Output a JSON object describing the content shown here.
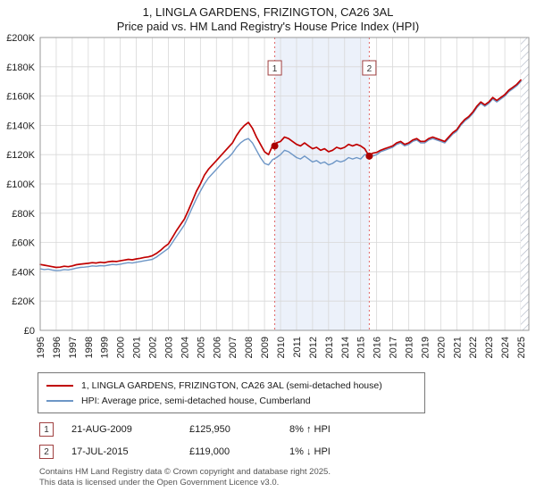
{
  "title": "1, LINGLA GARDENS, FRIZINGTON, CA26 3AL",
  "subtitle": "Price paid vs. HM Land Registry's House Price Index (HPI)",
  "chart_data": {
    "type": "line",
    "units": "GBP thousands",
    "xlim": [
      1995,
      2025.5
    ],
    "ylim": [
      0,
      200
    ],
    "grid": true,
    "legend_position": "bottom",
    "x_ticks": [
      1995,
      1996,
      1997,
      1998,
      1999,
      2000,
      2001,
      2002,
      2003,
      2004,
      2005,
      2006,
      2007,
      2008,
      2009,
      2010,
      2011,
      2012,
      2013,
      2014,
      2015,
      2016,
      2017,
      2018,
      2019,
      2020,
      2021,
      2022,
      2023,
      2024,
      2025
    ],
    "y_ticks": [
      {
        "value": 0,
        "label": "£0"
      },
      {
        "value": 20,
        "label": "£20K"
      },
      {
        "value": 40,
        "label": "£40K"
      },
      {
        "value": 60,
        "label": "£60K"
      },
      {
        "value": 80,
        "label": "£80K"
      },
      {
        "value": 100,
        "label": "£100K"
      },
      {
        "value": 120,
        "label": "£120K"
      },
      {
        "value": 140,
        "label": "£140K"
      },
      {
        "value": 160,
        "label": "£160K"
      },
      {
        "value": 180,
        "label": "£180K"
      },
      {
        "value": 200,
        "label": "£200K"
      }
    ],
    "x_start": 1995,
    "x_step": 0.25,
    "hatch_from": 2025.0,
    "band_color": "#dce6f5",
    "sale_line_color": "#e06666",
    "marker_color": "#aa0000",
    "series": [
      {
        "name": "1, LINGLA GARDENS, FRIZINGTON, CA26 3AL (semi-detached house)",
        "color": "#c00000",
        "stroke_width": 1.7,
        "values": [
          45.0,
          44.5,
          44.0,
          43.5,
          43.0,
          43.2,
          43.8,
          43.5,
          44.0,
          44.8,
          45.2,
          45.5,
          45.8,
          46.2,
          46.0,
          46.5,
          46.2,
          46.8,
          47.2,
          47.0,
          47.5,
          48.0,
          48.5,
          48.2,
          48.8,
          49.2,
          49.8,
          50.2,
          51.0,
          52.5,
          54.5,
          57.0,
          59.0,
          63.5,
          68.0,
          72.0,
          76.0,
          82.0,
          88.5,
          95.0,
          100.0,
          106.0,
          110.0,
          113.0,
          116.0,
          119.0,
          122.0,
          125.0,
          128.0,
          133.0,
          137.0,
          140.0,
          142.0,
          138.0,
          132.0,
          127.0,
          122.0,
          120.0,
          126.0,
          128.0,
          129.0,
          132.0,
          131.0,
          129.0,
          127.0,
          126.0,
          128.0,
          126.0,
          124.0,
          125.0,
          123.0,
          124.0,
          122.0,
          123.0,
          125.0,
          124.0,
          125.0,
          127.0,
          126.0,
          127.0,
          126.0,
          124.0,
          119.5,
          121.0,
          121.5,
          123.0,
          124.0,
          125.0,
          126.0,
          128.0,
          129.0,
          127.0,
          128.0,
          130.0,
          131.0,
          129.0,
          129.0,
          131.0,
          132.0,
          131.0,
          130.0,
          129.0,
          132.0,
          135.0,
          137.0,
          141.0,
          144.0,
          146.0,
          149.0,
          153.0,
          156.0,
          154.0,
          156.0,
          159.0,
          157.0,
          159.0,
          161.0,
          164.0,
          166.0,
          168.0,
          171.0
        ]
      },
      {
        "name": "HPI: Average price, semi-detached house, Cumberland",
        "color": "#6d96c6",
        "stroke_width": 1.4,
        "values": [
          42.0,
          41.5,
          41.8,
          41.2,
          40.8,
          41.0,
          41.5,
          41.3,
          41.8,
          42.5,
          43.0,
          43.2,
          43.5,
          44.0,
          43.8,
          44.2,
          44.0,
          44.5,
          45.0,
          44.8,
          45.2,
          45.8,
          46.2,
          46.0,
          46.5,
          47.0,
          47.5,
          48.0,
          48.5,
          50.0,
          52.0,
          54.0,
          56.0,
          60.0,
          64.0,
          68.0,
          72.0,
          78.0,
          84.0,
          90.0,
          95.0,
          100.0,
          104.0,
          107.0,
          110.0,
          113.0,
          116.0,
          118.0,
          121.0,
          125.0,
          128.0,
          130.0,
          131.0,
          128.0,
          123.0,
          118.0,
          114.0,
          113.0,
          116.5,
          118.0,
          120.0,
          123.0,
          122.0,
          120.0,
          118.0,
          117.0,
          119.0,
          117.0,
          115.0,
          116.0,
          114.0,
          115.0,
          113.0,
          114.0,
          116.0,
          115.0,
          116.0,
          118.0,
          117.0,
          118.0,
          117.0,
          120.0,
          120.0,
          119.0,
          120.0,
          122.0,
          123.0,
          124.0,
          125.0,
          127.0,
          128.0,
          126.0,
          127.0,
          129.0,
          130.0,
          128.0,
          128.0,
          130.0,
          131.0,
          130.0,
          129.0,
          128.0,
          131.0,
          134.0,
          136.0,
          140.0,
          143.0,
          145.0,
          148.0,
          152.0,
          155.0,
          153.0,
          155.0,
          158.0,
          156.0,
          158.0,
          160.0,
          163.0,
          165.0,
          167.0,
          170.0
        ]
      }
    ],
    "sales": [
      {
        "label": "1",
        "x": 2009.64,
        "y": 125.95,
        "date": "21-AUG-2009",
        "price": "£125,950",
        "hpi_delta": "8% ↑ HPI"
      },
      {
        "label": "2",
        "x": 2015.54,
        "y": 119.0,
        "date": "17-JUL-2015",
        "price": "£119,000",
        "hpi_delta": "1% ↓ HPI"
      }
    ]
  },
  "footer": {
    "line1": "Contains HM Land Registry data © Crown copyright and database right 2025.",
    "line2": "This data is licensed under the Open Government Licence v3.0."
  }
}
